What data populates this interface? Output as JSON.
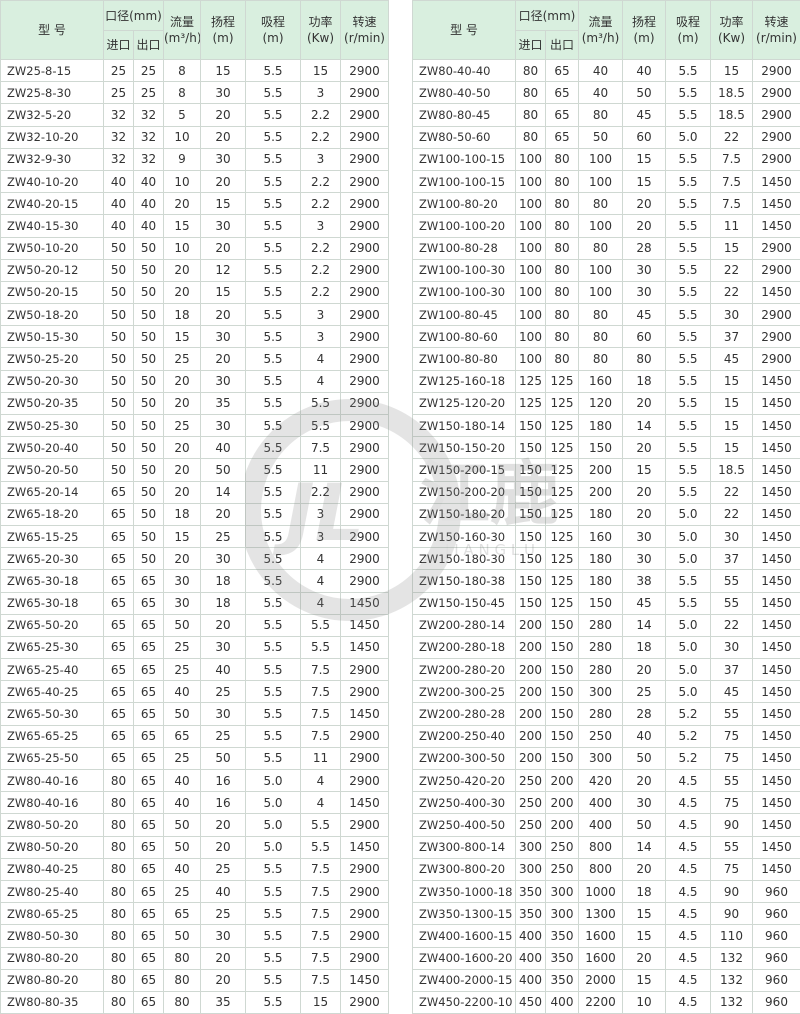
{
  "tables": [
    {
      "header": {
        "model": "型 号",
        "bore": "口径(mm)",
        "inlet": "进口",
        "outlet": "出口",
        "cols": [
          {
            "name": "流量",
            "unit": "(m³/h)"
          },
          {
            "name": "扬程",
            "unit": "(m)"
          },
          {
            "name": "吸程",
            "unit": "(m)"
          },
          {
            "name": "功率",
            "unit": "(Kw)"
          },
          {
            "name": "转速",
            "unit": "(r/min)"
          }
        ]
      },
      "rows": [
        [
          "ZW25-8-15",
          "25",
          "25",
          "8",
          "15",
          "5.5",
          "15",
          "2900"
        ],
        [
          "ZW25-8-30",
          "25",
          "25",
          "8",
          "30",
          "5.5",
          "3",
          "2900"
        ],
        [
          "ZW32-5-20",
          "32",
          "32",
          "5",
          "20",
          "5.5",
          "2.2",
          "2900"
        ],
        [
          "ZW32-10-20",
          "32",
          "32",
          "10",
          "20",
          "5.5",
          "2.2",
          "2900"
        ],
        [
          "ZW32-9-30",
          "32",
          "32",
          "9",
          "30",
          "5.5",
          "3",
          "2900"
        ],
        [
          "ZW40-10-20",
          "40",
          "40",
          "10",
          "20",
          "5.5",
          "2.2",
          "2900"
        ],
        [
          "ZW40-20-15",
          "40",
          "40",
          "20",
          "15",
          "5.5",
          "2.2",
          "2900"
        ],
        [
          "ZW40-15-30",
          "40",
          "40",
          "15",
          "30",
          "5.5",
          "3",
          "2900"
        ],
        [
          "ZW50-10-20",
          "50",
          "50",
          "10",
          "20",
          "5.5",
          "2.2",
          "2900"
        ],
        [
          "ZW50-20-12",
          "50",
          "50",
          "20",
          "12",
          "5.5",
          "2.2",
          "2900"
        ],
        [
          "ZW50-20-15",
          "50",
          "50",
          "20",
          "15",
          "5.5",
          "2.2",
          "2900"
        ],
        [
          "ZW50-18-20",
          "50",
          "50",
          "18",
          "20",
          "5.5",
          "3",
          "2900"
        ],
        [
          "ZW50-15-30",
          "50",
          "50",
          "15",
          "30",
          "5.5",
          "3",
          "2900"
        ],
        [
          "ZW50-25-20",
          "50",
          "50",
          "25",
          "20",
          "5.5",
          "4",
          "2900"
        ],
        [
          "ZW50-20-30",
          "50",
          "50",
          "20",
          "30",
          "5.5",
          "4",
          "2900"
        ],
        [
          "ZW50-20-35",
          "50",
          "50",
          "20",
          "35",
          "5.5",
          "5.5",
          "2900"
        ],
        [
          "ZW50-25-30",
          "50",
          "50",
          "25",
          "30",
          "5.5",
          "5.5",
          "2900"
        ],
        [
          "ZW50-20-40",
          "50",
          "50",
          "20",
          "40",
          "5.5",
          "7.5",
          "2900"
        ],
        [
          "ZW50-20-50",
          "50",
          "50",
          "20",
          "50",
          "5.5",
          "11",
          "2900"
        ],
        [
          "ZW65-20-14",
          "65",
          "50",
          "20",
          "14",
          "5.5",
          "2.2",
          "2900"
        ],
        [
          "ZW65-18-20",
          "65",
          "50",
          "18",
          "20",
          "5.5",
          "3",
          "2900"
        ],
        [
          "ZW65-15-25",
          "65",
          "50",
          "15",
          "25",
          "5.5",
          "3",
          "2900"
        ],
        [
          "ZW65-20-30",
          "65",
          "50",
          "20",
          "30",
          "5.5",
          "4",
          "2900"
        ],
        [
          "ZW65-30-18",
          "65",
          "65",
          "30",
          "18",
          "5.5",
          "4",
          "2900"
        ],
        [
          "ZW65-30-18",
          "65",
          "65",
          "30",
          "18",
          "5.5",
          "4",
          "1450"
        ],
        [
          "ZW65-50-20",
          "65",
          "65",
          "50",
          "20",
          "5.5",
          "5.5",
          "1450"
        ],
        [
          "ZW65-25-30",
          "65",
          "65",
          "25",
          "30",
          "5.5",
          "5.5",
          "1450"
        ],
        [
          "ZW65-25-40",
          "65",
          "65",
          "25",
          "40",
          "5.5",
          "7.5",
          "2900"
        ],
        [
          "ZW65-40-25",
          "65",
          "65",
          "40",
          "25",
          "5.5",
          "7.5",
          "2900"
        ],
        [
          "ZW65-50-30",
          "65",
          "65",
          "50",
          "30",
          "5.5",
          "7.5",
          "1450"
        ],
        [
          "ZW65-65-25",
          "65",
          "65",
          "65",
          "25",
          "5.5",
          "7.5",
          "2900"
        ],
        [
          "ZW65-25-50",
          "65",
          "65",
          "25",
          "50",
          "5.5",
          "11",
          "2900"
        ],
        [
          "ZW80-40-16",
          "80",
          "65",
          "40",
          "16",
          "5.0",
          "4",
          "2900"
        ],
        [
          "ZW80-40-16",
          "80",
          "65",
          "40",
          "16",
          "5.0",
          "4",
          "1450"
        ],
        [
          "ZW80-50-20",
          "80",
          "65",
          "50",
          "20",
          "5.0",
          "5.5",
          "2900"
        ],
        [
          "ZW80-50-20",
          "80",
          "65",
          "50",
          "20",
          "5.0",
          "5.5",
          "1450"
        ],
        [
          "ZW80-40-25",
          "80",
          "65",
          "40",
          "25",
          "5.5",
          "7.5",
          "2900"
        ],
        [
          "ZW80-25-40",
          "80",
          "65",
          "25",
          "40",
          "5.5",
          "7.5",
          "2900"
        ],
        [
          "ZW80-65-25",
          "80",
          "65",
          "65",
          "25",
          "5.5",
          "7.5",
          "2900"
        ],
        [
          "ZW80-50-30",
          "80",
          "65",
          "50",
          "30",
          "5.5",
          "7.5",
          "2900"
        ],
        [
          "ZW80-80-20",
          "80",
          "65",
          "80",
          "20",
          "5.5",
          "7.5",
          "2900"
        ],
        [
          "ZW80-80-20",
          "80",
          "65",
          "80",
          "20",
          "5.5",
          "7.5",
          "1450"
        ],
        [
          "ZW80-80-35",
          "80",
          "65",
          "80",
          "35",
          "5.5",
          "15",
          "2900"
        ]
      ]
    },
    {
      "header": {
        "model": "型 号",
        "bore": "口径(mm)",
        "inlet": "进口",
        "outlet": "出口",
        "cols": [
          {
            "name": "流量",
            "unit": "(m³/h)"
          },
          {
            "name": "扬程",
            "unit": "(m)"
          },
          {
            "name": "吸程",
            "unit": "(m)"
          },
          {
            "name": "功率",
            "unit": "(Kw)"
          },
          {
            "name": "转速",
            "unit": "(r/min)"
          }
        ]
      },
      "rows": [
        [
          "ZW80-40-40",
          "80",
          "65",
          "40",
          "40",
          "5.5",
          "15",
          "2900"
        ],
        [
          "ZW80-40-50",
          "80",
          "65",
          "40",
          "50",
          "5.5",
          "18.5",
          "2900"
        ],
        [
          "ZW80-80-45",
          "80",
          "65",
          "80",
          "45",
          "5.5",
          "18.5",
          "2900"
        ],
        [
          "ZW80-50-60",
          "80",
          "65",
          "50",
          "60",
          "5.0",
          "22",
          "2900"
        ],
        [
          "ZW100-100-15",
          "100",
          "80",
          "100",
          "15",
          "5.5",
          "7.5",
          "2900"
        ],
        [
          "ZW100-100-15",
          "100",
          "80",
          "100",
          "15",
          "5.5",
          "7.5",
          "1450"
        ],
        [
          "ZW100-80-20",
          "100",
          "80",
          "80",
          "20",
          "5.5",
          "7.5",
          "1450"
        ],
        [
          "ZW100-100-20",
          "100",
          "80",
          "100",
          "20",
          "5.5",
          "11",
          "1450"
        ],
        [
          "ZW100-80-28",
          "100",
          "80",
          "80",
          "28",
          "5.5",
          "15",
          "2900"
        ],
        [
          "ZW100-100-30",
          "100",
          "80",
          "100",
          "30",
          "5.5",
          "22",
          "2900"
        ],
        [
          "ZW100-100-30",
          "100",
          "80",
          "100",
          "30",
          "5.5",
          "22",
          "1450"
        ],
        [
          "ZW100-80-45",
          "100",
          "80",
          "80",
          "45",
          "5.5",
          "30",
          "2900"
        ],
        [
          "ZW100-80-60",
          "100",
          "80",
          "80",
          "60",
          "5.5",
          "37",
          "2900"
        ],
        [
          "ZW100-80-80",
          "100",
          "80",
          "80",
          "80",
          "5.5",
          "45",
          "2900"
        ],
        [
          "ZW125-160-18",
          "125",
          "125",
          "160",
          "18",
          "5.5",
          "15",
          "1450"
        ],
        [
          "ZW125-120-20",
          "125",
          "125",
          "120",
          "20",
          "5.5",
          "15",
          "1450"
        ],
        [
          "ZW150-180-14",
          "150",
          "125",
          "180",
          "14",
          "5.5",
          "15",
          "1450"
        ],
        [
          "ZW150-150-20",
          "150",
          "125",
          "150",
          "20",
          "5.5",
          "15",
          "1450"
        ],
        [
          "ZW150-200-15",
          "150",
          "125",
          "200",
          "15",
          "5.5",
          "18.5",
          "1450"
        ],
        [
          "ZW150-200-20",
          "150",
          "125",
          "200",
          "20",
          "5.5",
          "22",
          "1450"
        ],
        [
          "ZW150-180-20",
          "150",
          "125",
          "180",
          "20",
          "5.0",
          "22",
          "1450"
        ],
        [
          "ZW150-160-30",
          "150",
          "125",
          "160",
          "30",
          "5.0",
          "30",
          "1450"
        ],
        [
          "ZW150-180-30",
          "150",
          "125",
          "180",
          "30",
          "5.0",
          "37",
          "1450"
        ],
        [
          "ZW150-180-38",
          "150",
          "125",
          "180",
          "38",
          "5.5",
          "55",
          "1450"
        ],
        [
          "ZW150-150-45",
          "150",
          "125",
          "150",
          "45",
          "5.5",
          "55",
          "1450"
        ],
        [
          "ZW200-280-14",
          "200",
          "150",
          "280",
          "14",
          "5.0",
          "22",
          "1450"
        ],
        [
          "ZW200-280-18",
          "200",
          "150",
          "280",
          "18",
          "5.0",
          "30",
          "1450"
        ],
        [
          "ZW200-280-20",
          "200",
          "150",
          "280",
          "20",
          "5.0",
          "37",
          "1450"
        ],
        [
          "ZW200-300-25",
          "200",
          "150",
          "300",
          "25",
          "5.0",
          "45",
          "1450"
        ],
        [
          "ZW200-280-28",
          "200",
          "150",
          "280",
          "28",
          "5.2",
          "55",
          "1450"
        ],
        [
          "ZW200-250-40",
          "200",
          "150",
          "250",
          "40",
          "5.2",
          "75",
          "1450"
        ],
        [
          "ZW200-300-50",
          "200",
          "150",
          "300",
          "50",
          "5.2",
          "75",
          "1450"
        ],
        [
          "ZW250-420-20",
          "250",
          "200",
          "420",
          "20",
          "4.5",
          "55",
          "1450"
        ],
        [
          "ZW250-400-30",
          "250",
          "200",
          "400",
          "30",
          "4.5",
          "75",
          "1450"
        ],
        [
          "ZW250-400-50",
          "250",
          "200",
          "400",
          "50",
          "4.5",
          "90",
          "1450"
        ],
        [
          "ZW300-800-14",
          "300",
          "250",
          "800",
          "14",
          "4.5",
          "55",
          "1450"
        ],
        [
          "ZW300-800-20",
          "300",
          "250",
          "800",
          "20",
          "4.5",
          "75",
          "1450"
        ],
        [
          "ZW350-1000-18",
          "350",
          "300",
          "1000",
          "18",
          "4.5",
          "90",
          "960"
        ],
        [
          "ZW350-1300-15",
          "350",
          "300",
          "1300",
          "15",
          "4.5",
          "90",
          "960"
        ],
        [
          "ZW400-1600-15",
          "400",
          "350",
          "1600",
          "15",
          "4.5",
          "110",
          "960"
        ],
        [
          "ZW400-1600-20",
          "400",
          "350",
          "1600",
          "20",
          "4.5",
          "132",
          "960"
        ],
        [
          "ZW400-2000-15",
          "400",
          "350",
          "2000",
          "15",
          "4.5",
          "132",
          "960"
        ],
        [
          "ZW450-2200-10",
          "450",
          "400",
          "2200",
          "10",
          "4.5",
          "132",
          "960"
        ]
      ]
    }
  ],
  "watermark": {
    "logo": "JL",
    "name": "江鹿",
    "latin": "J I A N G L U"
  }
}
